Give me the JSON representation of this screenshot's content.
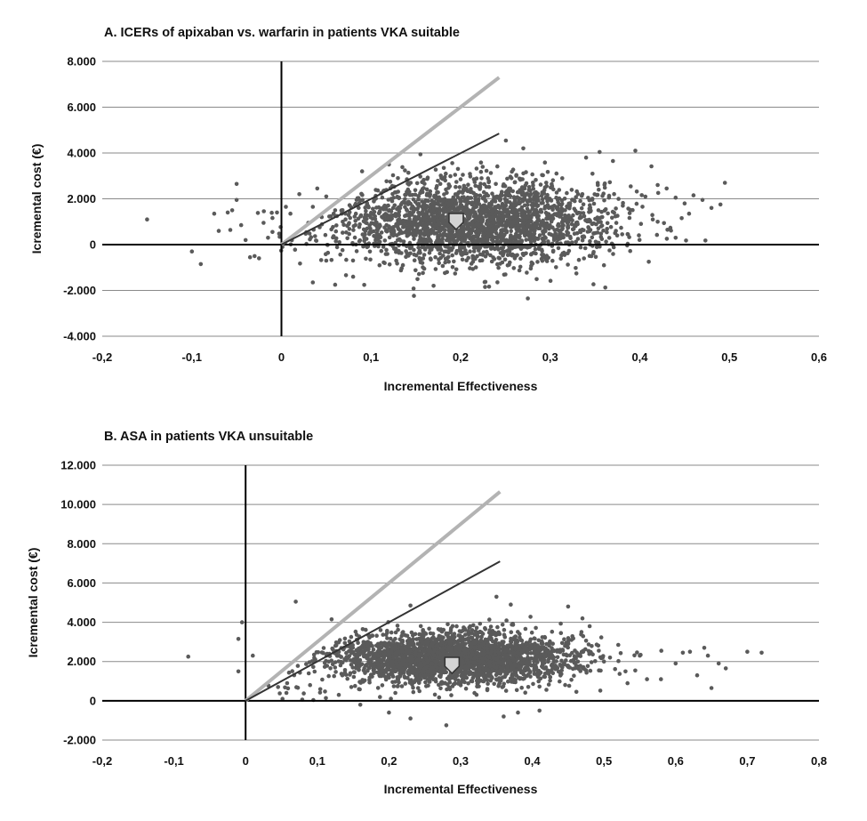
{
  "chart_data": [
    {
      "type": "scatter",
      "title": "A. ICERs of apixaban vs. warfarin in patients VKA suitable",
      "xlabel": "Incremental Effectiveness",
      "ylabel": "Icremental cost (€)",
      "xlim": [
        -0.2,
        0.6
      ],
      "ylim": [
        -4000,
        8000
      ],
      "x_ticks": [
        -0.2,
        -0.1,
        0,
        0.1,
        0.2,
        0.3,
        0.4,
        0.5,
        0.6
      ],
      "x_tick_labels": [
        "-0,2",
        "-0,1",
        "0",
        "0,1",
        "0,2",
        "0,3",
        "0,4",
        "0,5",
        "0,6"
      ],
      "y_ticks": [
        -4000,
        -2000,
        0,
        2000,
        4000,
        6000,
        8000
      ],
      "y_tick_labels": [
        "-4.000",
        "-2.000",
        "0",
        "2.000",
        "4.000",
        "6.000",
        "8.000"
      ],
      "grid": true,
      "legend": "none",
      "colors": {
        "points": "#5a5a5a",
        "mean_marker": "#d4d4d4",
        "threshold_light": "#b3b3b3",
        "threshold_dark": "#333333"
      },
      "threshold_lines": [
        {
          "x": [
            0,
            0.243
          ],
          "y": [
            0,
            7300
          ],
          "color": "light"
        },
        {
          "x": [
            0,
            0.243
          ],
          "y": [
            0,
            4850
          ],
          "color": "dark"
        }
      ],
      "mean_point": {
        "x": 0.195,
        "y": 1050
      },
      "cluster": {
        "center": [
          0.22,
          1000
        ],
        "spread": [
          0.075,
          900
        ],
        "count": 2400,
        "seed": 7
      },
      "points": [
        [
          -0.15,
          1100
        ],
        [
          -0.09,
          -850
        ],
        [
          -0.1,
          -300
        ],
        [
          -0.075,
          1350
        ],
        [
          -0.07,
          600
        ],
        [
          -0.05,
          2650
        ],
        [
          -0.05,
          1950
        ],
        [
          -0.055,
          1500
        ],
        [
          -0.06,
          1400
        ],
        [
          -0.045,
          850
        ],
        [
          -0.04,
          200
        ],
        [
          -0.035,
          -550
        ],
        [
          -0.03,
          -500
        ],
        [
          -0.025,
          -600
        ],
        [
          -0.02,
          950
        ],
        [
          -0.01,
          550
        ],
        [
          -0.015,
          300
        ],
        [
          -0.005,
          1400
        ],
        [
          0.005,
          1650
        ],
        [
          0.01,
          1350
        ],
        [
          0.02,
          2200
        ],
        [
          0.03,
          950
        ],
        [
          0.035,
          1650
        ],
        [
          0.04,
          2450
        ],
        [
          0.045,
          1200
        ],
        [
          0.05,
          2100
        ],
        [
          0.06,
          1500
        ],
        [
          0.035,
          -1650
        ],
        [
          0.05,
          -700
        ],
        [
          0.06,
          -1750
        ],
        [
          0.08,
          -1400
        ],
        [
          0.09,
          3200
        ],
        [
          0.12,
          3500
        ],
        [
          0.13,
          2900
        ],
        [
          0.27,
          4200
        ],
        [
          0.275,
          -2350
        ],
        [
          0.34,
          3800
        ],
        [
          0.37,
          3650
        ],
        [
          0.395,
          4100
        ],
        [
          0.42,
          2600
        ],
        [
          0.43,
          2450
        ],
        [
          0.45,
          1800
        ],
        [
          0.46,
          2150
        ],
        [
          0.47,
          1950
        ],
        [
          0.48,
          1600
        ],
        [
          0.49,
          1750
        ],
        [
          0.495,
          2700
        ],
        [
          0.44,
          300
        ],
        [
          0.41,
          -750
        ],
        [
          0.36,
          -900
        ],
        [
          0.25,
          -1300
        ],
        [
          0.42,
          1000
        ],
        [
          0.455,
          1350
        ],
        [
          0.44,
          2050
        ]
      ]
    },
    {
      "type": "scatter",
      "title": "B. ASA in patients VKA unsuitable",
      "xlabel": "Incremental Effectiveness",
      "ylabel": "Icremental cost (€)",
      "xlim": [
        -0.2,
        0.8
      ],
      "ylim": [
        -2000,
        12000
      ],
      "x_ticks": [
        -0.2,
        -0.1,
        0,
        0.1,
        0.2,
        0.3,
        0.4,
        0.5,
        0.6,
        0.7,
        0.8
      ],
      "x_tick_labels": [
        "-0,2",
        "-0,1",
        "0",
        "0,1",
        "0,2",
        "0,3",
        "0,4",
        "0,5",
        "0,6",
        "0,7",
        "0,8"
      ],
      "y_ticks": [
        -2000,
        0,
        2000,
        4000,
        6000,
        8000,
        10000,
        12000
      ],
      "y_tick_labels": [
        "-2.000",
        "0",
        "2.000",
        "4.000",
        "6.000",
        "8.000",
        "10.000",
        "12.000"
      ],
      "grid": true,
      "legend": "none",
      "colors": {
        "points": "#5a5a5a",
        "mean_marker": "#d4d4d4",
        "threshold_light": "#b3b3b3",
        "threshold_dark": "#333333"
      },
      "threshold_lines": [
        {
          "x": [
            0,
            0.355
          ],
          "y": [
            0,
            10650
          ],
          "color": "light"
        },
        {
          "x": [
            0,
            0.355
          ],
          "y": [
            0,
            7100
          ],
          "color": "dark"
        }
      ],
      "mean_point": {
        "x": 0.288,
        "y": 1850
      },
      "cluster": {
        "center": [
          0.29,
          2150
        ],
        "spread": [
          0.085,
          650
        ],
        "count": 2600,
        "seed": 23
      },
      "points": [
        [
          -0.08,
          2250
        ],
        [
          -0.01,
          1500
        ],
        [
          -0.01,
          3150
        ],
        [
          -0.005,
          4000
        ],
        [
          0.01,
          2300
        ],
        [
          0.07,
          5050
        ],
        [
          0.12,
          4150
        ],
        [
          0.23,
          4850
        ],
        [
          0.35,
          5300
        ],
        [
          0.37,
          4900
        ],
        [
          0.45,
          4800
        ],
        [
          0.47,
          4200
        ],
        [
          0.48,
          3800
        ],
        [
          0.52,
          2850
        ],
        [
          0.55,
          2300
        ],
        [
          0.58,
          2550
        ],
        [
          0.6,
          1900
        ],
        [
          0.61,
          2450
        ],
        [
          0.62,
          2500
        ],
        [
          0.63,
          1300
        ],
        [
          0.64,
          2700
        ],
        [
          0.645,
          2300
        ],
        [
          0.65,
          650
        ],
        [
          0.66,
          1900
        ],
        [
          0.67,
          1650
        ],
        [
          0.7,
          2500
        ],
        [
          0.72,
          2450
        ],
        [
          0.2,
          -600
        ],
        [
          0.23,
          -900
        ],
        [
          0.28,
          -1250
        ],
        [
          0.36,
          -800
        ],
        [
          0.38,
          -600
        ],
        [
          0.41,
          -500
        ],
        [
          0.44,
          3450
        ],
        [
          0.5,
          2000
        ],
        [
          0.53,
          1500
        ],
        [
          0.56,
          1100
        ],
        [
          0.16,
          -200
        ],
        [
          0.13,
          300
        ],
        [
          0.09,
          800
        ]
      ]
    }
  ]
}
